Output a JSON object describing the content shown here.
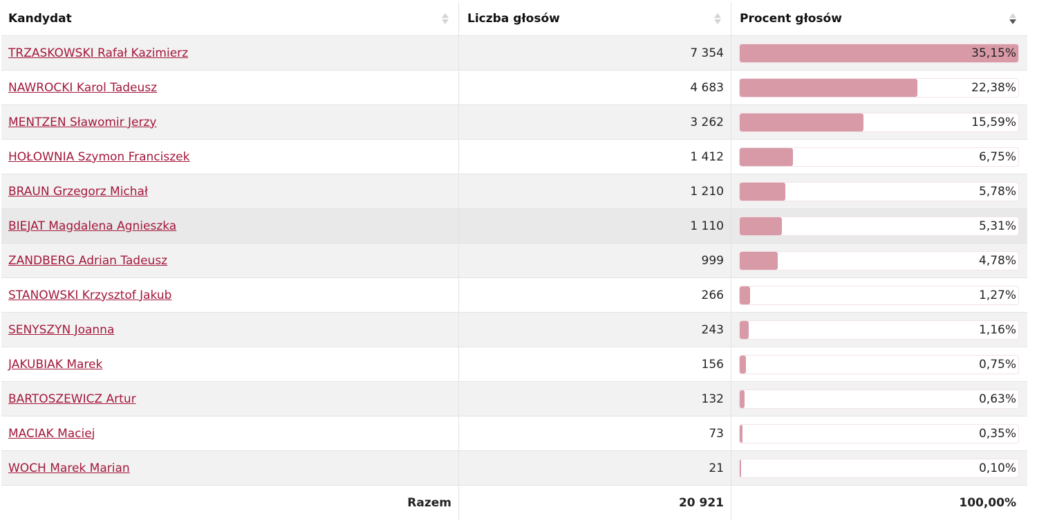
{
  "header": {
    "col_candidate": "Kandydat",
    "col_votes": "Liczba głosów",
    "col_percent": "Procent głosów"
  },
  "rows": [
    {
      "name": "TRZASKOWSKI Rafał Kazimierz",
      "votes": "7 354",
      "percent": "35,15%",
      "share": 1.0
    },
    {
      "name": "NAWROCKI Karol Tadeusz",
      "votes": "4 683",
      "percent": "22,38%",
      "share": 0.6367
    },
    {
      "name": "MENTZEN Sławomir Jerzy",
      "votes": "3 262",
      "percent": "15,59%",
      "share": 0.4435
    },
    {
      "name": "HOŁOWNIA Szymon Franciszek",
      "votes": "1 412",
      "percent": "6,75%",
      "share": 0.192
    },
    {
      "name": "BRAUN Grzegorz Michał",
      "votes": "1 210",
      "percent": "5,78%",
      "share": 0.1645
    },
    {
      "name": "BIEJAT Magdalena Agnieszka",
      "votes": "1 110",
      "percent": "5,31%",
      "share": 0.1511
    },
    {
      "name": "ZANDBERG Adrian Tadeusz",
      "votes": "999",
      "percent": "4,78%",
      "share": 0.136
    },
    {
      "name": "STANOWSKI Krzysztof Jakub",
      "votes": "266",
      "percent": "1,27%",
      "share": 0.0361
    },
    {
      "name": "SENYSZYN Joanna",
      "votes": "243",
      "percent": "1,16%",
      "share": 0.033
    },
    {
      "name": "JAKUBIAK Marek",
      "votes": "156",
      "percent": "0,75%",
      "share": 0.0213
    },
    {
      "name": "BARTOSZEWICZ Artur",
      "votes": "132",
      "percent": "0,63%",
      "share": 0.0179
    },
    {
      "name": "MACIAK Maciej",
      "votes": "73",
      "percent": "0,35%",
      "share": 0.01
    },
    {
      "name": "WOCH Marek Marian",
      "votes": "21",
      "percent": "0,10%",
      "share": 0.0028
    }
  ],
  "total": {
    "label": "Razem",
    "votes": "20 921",
    "percent": "100,00%"
  },
  "colors": {
    "link": "#a3173b",
    "bar_fill": "#d99aa8",
    "row_stripe": "#f2f2f2"
  }
}
